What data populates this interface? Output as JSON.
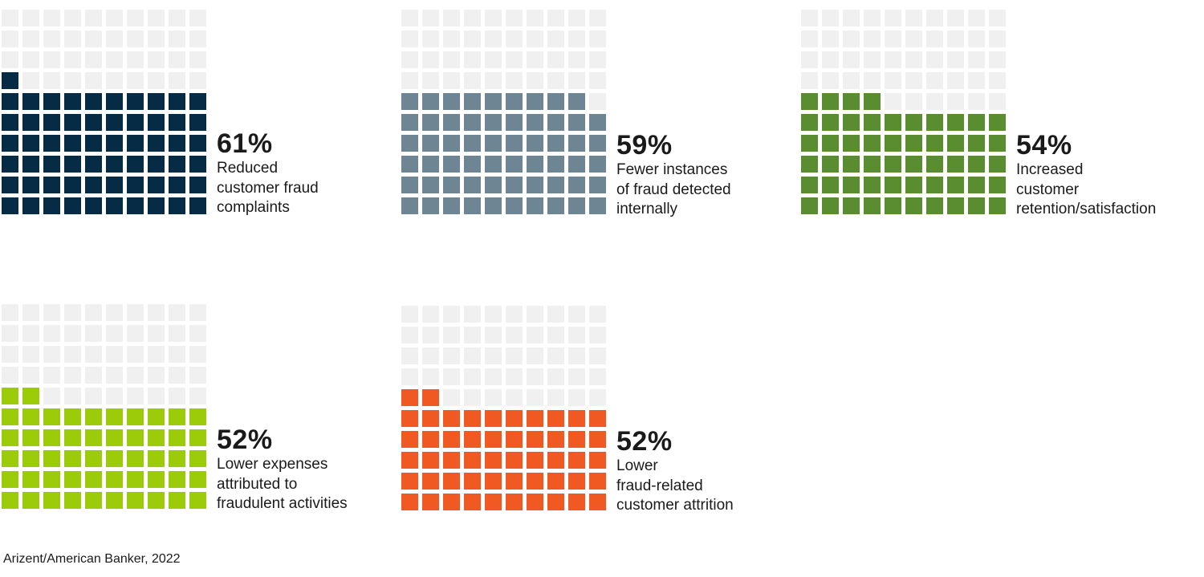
{
  "chart_data": [
    {
      "type": "waffle",
      "value": 61,
      "value_label": "61%",
      "description_lines": [
        "Reduced",
        "customer fraud",
        "complaints"
      ],
      "color": "#062b44"
    },
    {
      "type": "waffle",
      "value": 59,
      "value_label": "59%",
      "description_lines": [
        "Fewer instances",
        "of fraud detected",
        "internally"
      ],
      "color": "#6e8593"
    },
    {
      "type": "waffle",
      "value": 54,
      "value_label": "54%",
      "description_lines": [
        "Increased",
        "customer",
        "retention/satisfaction"
      ],
      "color": "#5a8d2f"
    },
    {
      "type": "waffle",
      "value": 52,
      "value_label": "52%",
      "description_lines": [
        "Lower expenses",
        "attributed to",
        "fraudulent activities"
      ],
      "color": "#9ccb0a"
    },
    {
      "type": "waffle",
      "value": 52,
      "value_label": "52%",
      "description_lines": [
        "Lower",
        "fraud-related",
        "customer attrition"
      ],
      "color": "#f05a22"
    }
  ],
  "empty_color": "#f0f0f0",
  "source": "Arizent/American Banker, 2022"
}
